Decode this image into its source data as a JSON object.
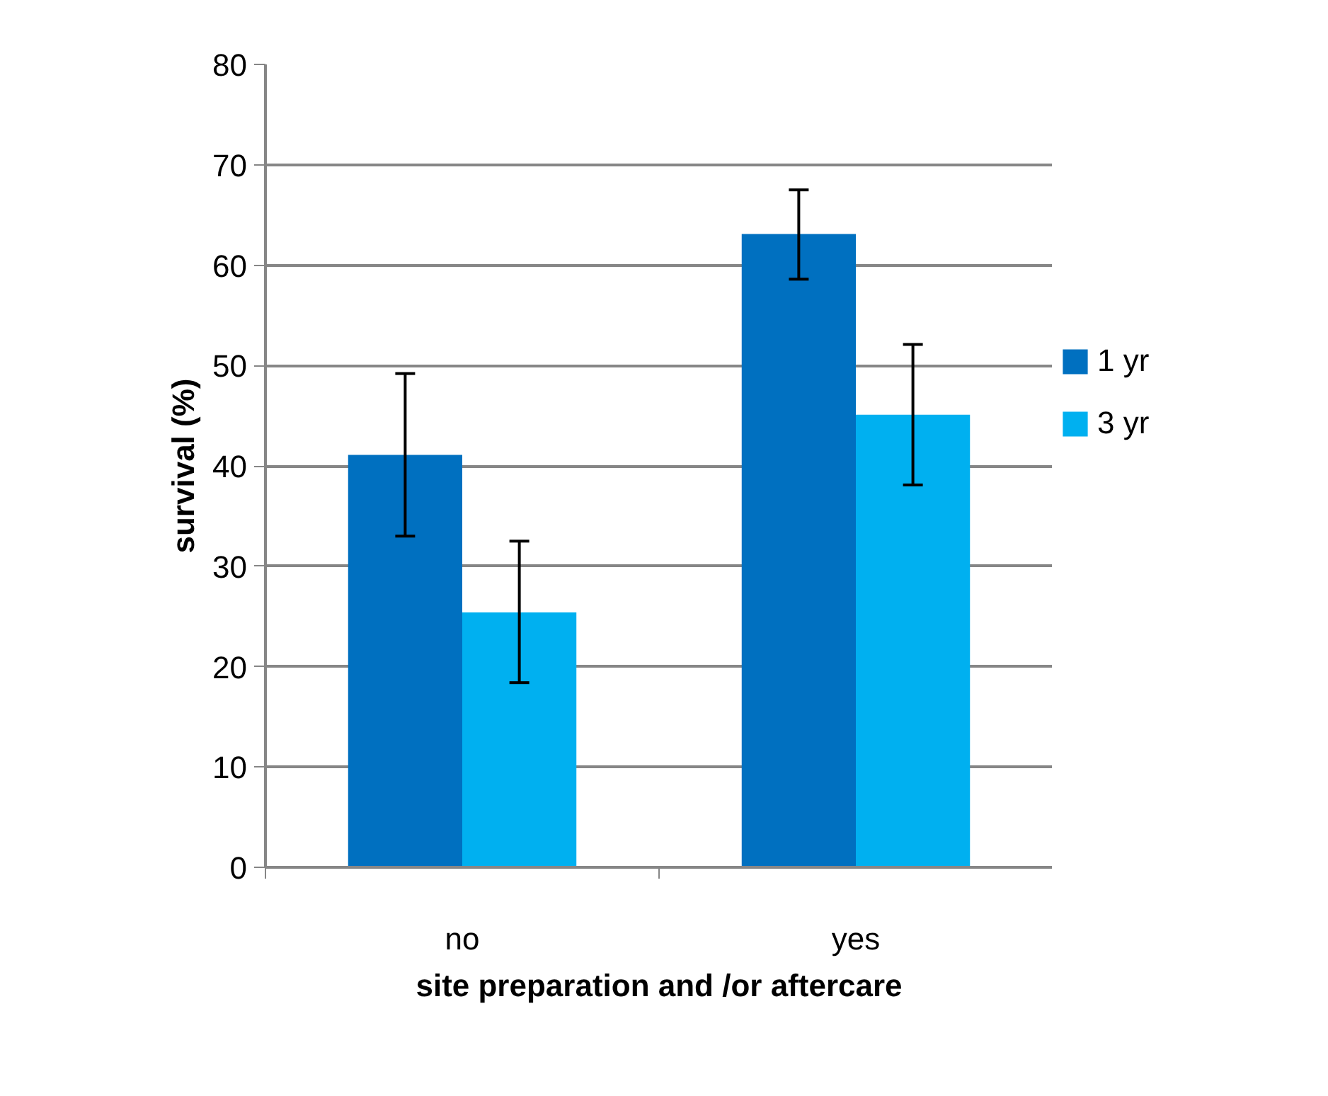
{
  "chart_data": {
    "type": "bar",
    "xlabel": "site preparation and /or aftercare",
    "ylabel": "survival (%)",
    "categories": [
      "no",
      "yes"
    ],
    "series": [
      {
        "name": "1 yr",
        "color": "#0070c0",
        "values": [
          41.1,
          63.1
        ],
        "errors": [
          [
            33.0,
            49.2
          ],
          [
            58.6,
            67.5
          ]
        ]
      },
      {
        "name": "3 yr",
        "color": "#00b0f0",
        "values": [
          25.4,
          45.1
        ],
        "errors": [
          [
            18.4,
            32.5
          ],
          [
            38.1,
            52.1
          ]
        ]
      }
    ],
    "ylim": [
      0,
      80
    ],
    "yticks": [
      0,
      10,
      20,
      30,
      40,
      50,
      60,
      70,
      80
    ],
    "grid": "y",
    "legend": "right"
  }
}
